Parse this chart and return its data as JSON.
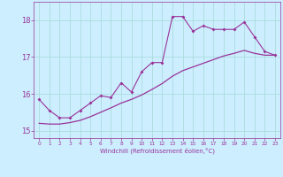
{
  "title": "",
  "xlabel": "Windchill (Refroidissement éolien,°C)",
  "ylabel": "",
  "background_color": "#cceeff",
  "grid_color": "#aadddd",
  "line_color": "#993399",
  "xlim": [
    -0.5,
    23.5
  ],
  "ylim": [
    14.8,
    18.5
  ],
  "yticks": [
    15,
    16,
    17,
    18
  ],
  "xticks": [
    0,
    1,
    2,
    3,
    4,
    5,
    6,
    7,
    8,
    9,
    10,
    11,
    12,
    13,
    14,
    15,
    16,
    17,
    18,
    19,
    20,
    21,
    22,
    23
  ],
  "x_jagged": [
    0,
    1,
    2,
    3,
    4,
    5,
    6,
    7,
    8,
    9,
    10,
    11,
    12,
    13,
    14,
    15,
    16,
    17,
    18,
    19,
    20,
    21,
    22,
    23
  ],
  "y_jagged": [
    15.85,
    15.55,
    15.35,
    15.35,
    15.55,
    15.75,
    15.95,
    15.9,
    16.3,
    16.05,
    16.6,
    16.85,
    16.85,
    18.1,
    18.1,
    17.7,
    17.85,
    17.75,
    17.75,
    17.75,
    17.95,
    17.55,
    17.15,
    17.05
  ],
  "x_smooth": [
    0,
    1,
    2,
    3,
    4,
    5,
    6,
    7,
    8,
    9,
    10,
    11,
    12,
    13,
    14,
    15,
    16,
    17,
    18,
    19,
    20,
    21,
    22,
    23
  ],
  "y_smooth": [
    15.2,
    15.18,
    15.18,
    15.22,
    15.28,
    15.38,
    15.5,
    15.62,
    15.75,
    15.85,
    15.97,
    16.12,
    16.28,
    16.48,
    16.63,
    16.73,
    16.83,
    16.93,
    17.03,
    17.1,
    17.18,
    17.1,
    17.05,
    17.05
  ]
}
